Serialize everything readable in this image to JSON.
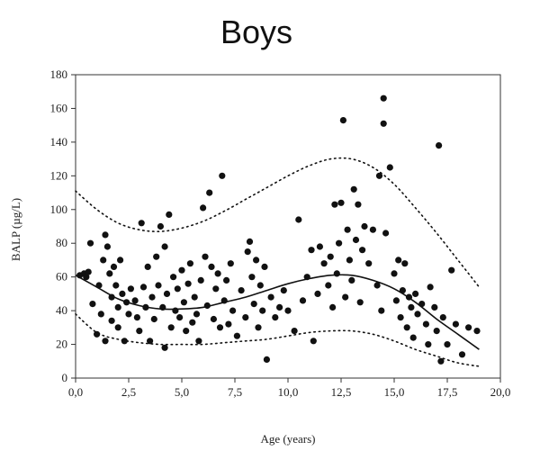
{
  "chart_data": {
    "type": "scatter",
    "title": "Boys",
    "xlabel": "Age (years)",
    "ylabel": "BALP (µg/L)",
    "xlim": [
      0,
      20
    ],
    "ylim": [
      0,
      180
    ],
    "xticks": [
      0,
      2.5,
      5,
      7.5,
      10,
      12.5,
      15,
      17.5,
      20
    ],
    "xtick_labels": [
      "0,0",
      "2,5",
      "5,0",
      "7,5",
      "10,0",
      "12,5",
      "15,0",
      "17,5",
      "20,0"
    ],
    "yticks": [
      0,
      20,
      40,
      60,
      80,
      100,
      120,
      140,
      160,
      180
    ],
    "ytick_labels": [
      "0",
      "20",
      "40",
      "60",
      "80",
      "100",
      "120",
      "140",
      "160",
      "180"
    ],
    "grid": false,
    "series": [
      {
        "type": "scatter",
        "points": [
          [
            0.2,
            61
          ],
          [
            0.4,
            62
          ],
          [
            0.5,
            60
          ],
          [
            0.6,
            63
          ],
          [
            0.7,
            80
          ],
          [
            0.8,
            44
          ],
          [
            1.0,
            26
          ],
          [
            1.1,
            55
          ],
          [
            1.2,
            38
          ],
          [
            1.3,
            70
          ],
          [
            1.4,
            85
          ],
          [
            1.4,
            22
          ],
          [
            1.5,
            78
          ],
          [
            1.6,
            62
          ],
          [
            1.7,
            48
          ],
          [
            1.7,
            34
          ],
          [
            1.8,
            66
          ],
          [
            1.9,
            55
          ],
          [
            2.0,
            42
          ],
          [
            2.0,
            30
          ],
          [
            2.1,
            70
          ],
          [
            2.2,
            50
          ],
          [
            2.3,
            22
          ],
          [
            2.4,
            45
          ],
          [
            2.5,
            38
          ],
          [
            2.6,
            53
          ],
          [
            2.8,
            46
          ],
          [
            2.9,
            36
          ],
          [
            3.0,
            28
          ],
          [
            3.1,
            92
          ],
          [
            3.2,
            54
          ],
          [
            3.3,
            42
          ],
          [
            3.4,
            66
          ],
          [
            3.5,
            22
          ],
          [
            3.6,
            48
          ],
          [
            3.7,
            35
          ],
          [
            3.8,
            72
          ],
          [
            3.9,
            55
          ],
          [
            4.0,
            90
          ],
          [
            4.1,
            42
          ],
          [
            4.2,
            78
          ],
          [
            4.2,
            18
          ],
          [
            4.3,
            50
          ],
          [
            4.4,
            97
          ],
          [
            4.5,
            30
          ],
          [
            4.6,
            60
          ],
          [
            4.7,
            40
          ],
          [
            4.8,
            53
          ],
          [
            4.9,
            36
          ],
          [
            5.0,
            64
          ],
          [
            5.1,
            45
          ],
          [
            5.2,
            28
          ],
          [
            5.3,
            56
          ],
          [
            5.4,
            68
          ],
          [
            5.5,
            33
          ],
          [
            5.6,
            48
          ],
          [
            5.7,
            38
          ],
          [
            5.8,
            22
          ],
          [
            5.9,
            58
          ],
          [
            6.0,
            101
          ],
          [
            6.1,
            72
          ],
          [
            6.2,
            43
          ],
          [
            6.3,
            110
          ],
          [
            6.4,
            66
          ],
          [
            6.5,
            35
          ],
          [
            6.6,
            53
          ],
          [
            6.7,
            62
          ],
          [
            6.8,
            30
          ],
          [
            6.9,
            120
          ],
          [
            7.0,
            46
          ],
          [
            7.1,
            58
          ],
          [
            7.2,
            32
          ],
          [
            7.3,
            68
          ],
          [
            7.4,
            40
          ],
          [
            7.6,
            25
          ],
          [
            7.8,
            52
          ],
          [
            8.0,
            36
          ],
          [
            8.1,
            75
          ],
          [
            8.2,
            81
          ],
          [
            8.3,
            60
          ],
          [
            8.4,
            44
          ],
          [
            8.5,
            70
          ],
          [
            8.6,
            30
          ],
          [
            8.7,
            55
          ],
          [
            8.8,
            40
          ],
          [
            8.9,
            66
          ],
          [
            9.0,
            11
          ],
          [
            9.2,
            48
          ],
          [
            9.4,
            36
          ],
          [
            9.6,
            42
          ],
          [
            9.8,
            52
          ],
          [
            10.0,
            40
          ],
          [
            10.3,
            28
          ],
          [
            10.5,
            94
          ],
          [
            10.7,
            46
          ],
          [
            10.9,
            60
          ],
          [
            11.1,
            76
          ],
          [
            11.2,
            22
          ],
          [
            11.4,
            50
          ],
          [
            11.5,
            78
          ],
          [
            11.7,
            68
          ],
          [
            11.9,
            55
          ],
          [
            12.0,
            72
          ],
          [
            12.1,
            42
          ],
          [
            12.2,
            103
          ],
          [
            12.3,
            62
          ],
          [
            12.4,
            80
          ],
          [
            12.5,
            104
          ],
          [
            12.6,
            153
          ],
          [
            12.7,
            48
          ],
          [
            12.8,
            88
          ],
          [
            12.9,
            70
          ],
          [
            13.0,
            58
          ],
          [
            13.1,
            112
          ],
          [
            13.2,
            82
          ],
          [
            13.3,
            103
          ],
          [
            13.4,
            45
          ],
          [
            13.5,
            76
          ],
          [
            13.6,
            90
          ],
          [
            13.8,
            68
          ],
          [
            14.0,
            88
          ],
          [
            14.2,
            55
          ],
          [
            14.3,
            120
          ],
          [
            14.4,
            40
          ],
          [
            14.5,
            166
          ],
          [
            14.5,
            151
          ],
          [
            14.6,
            86
          ],
          [
            14.8,
            125
          ],
          [
            15.0,
            62
          ],
          [
            15.1,
            46
          ],
          [
            15.2,
            70
          ],
          [
            15.3,
            36
          ],
          [
            15.4,
            52
          ],
          [
            15.5,
            68
          ],
          [
            15.6,
            30
          ],
          [
            15.7,
            48
          ],
          [
            15.8,
            42
          ],
          [
            15.9,
            24
          ],
          [
            16.0,
            50
          ],
          [
            16.1,
            38
          ],
          [
            16.3,
            44
          ],
          [
            16.5,
            32
          ],
          [
            16.6,
            20
          ],
          [
            16.7,
            54
          ],
          [
            16.9,
            42
          ],
          [
            17.0,
            28
          ],
          [
            17.1,
            138
          ],
          [
            17.2,
            10
          ],
          [
            17.3,
            36
          ],
          [
            17.5,
            20
          ],
          [
            17.7,
            64
          ],
          [
            17.9,
            32
          ],
          [
            18.2,
            14
          ],
          [
            18.5,
            30
          ],
          [
            18.9,
            28
          ]
        ]
      },
      {
        "type": "line",
        "style": "solid",
        "points": [
          [
            0,
            61
          ],
          [
            1,
            54
          ],
          [
            2,
            47
          ],
          [
            3,
            43
          ],
          [
            4,
            41
          ],
          [
            5,
            41
          ],
          [
            6,
            42
          ],
          [
            7,
            45
          ],
          [
            8,
            48
          ],
          [
            9,
            52
          ],
          [
            10,
            56
          ],
          [
            11,
            59
          ],
          [
            12,
            61
          ],
          [
            13,
            61
          ],
          [
            14,
            58
          ],
          [
            15,
            53
          ],
          [
            16,
            45
          ],
          [
            17,
            35
          ],
          [
            18,
            26
          ],
          [
            19,
            17
          ]
        ]
      },
      {
        "type": "line",
        "style": "dotted",
        "points": [
          [
            0,
            111
          ],
          [
            1,
            100
          ],
          [
            2,
            92
          ],
          [
            3,
            88
          ],
          [
            4,
            87
          ],
          [
            5,
            89
          ],
          [
            6,
            93
          ],
          [
            7,
            99
          ],
          [
            8,
            106
          ],
          [
            9,
            113
          ],
          [
            10,
            120
          ],
          [
            11,
            126
          ],
          [
            12,
            130
          ],
          [
            13,
            130
          ],
          [
            14,
            125
          ],
          [
            15,
            115
          ],
          [
            16,
            101
          ],
          [
            17,
            86
          ],
          [
            18,
            70
          ],
          [
            19,
            54
          ]
        ]
      },
      {
        "type": "line",
        "style": "dotted",
        "points": [
          [
            0,
            38
          ],
          [
            1,
            27
          ],
          [
            2,
            23
          ],
          [
            3,
            21
          ],
          [
            4,
            20
          ],
          [
            5,
            20
          ],
          [
            6,
            20
          ],
          [
            7,
            21
          ],
          [
            8,
            22
          ],
          [
            9,
            23
          ],
          [
            10,
            25
          ],
          [
            11,
            27
          ],
          [
            12,
            28
          ],
          [
            13,
            28
          ],
          [
            14,
            26
          ],
          [
            15,
            22
          ],
          [
            16,
            17
          ],
          [
            17,
            13
          ],
          [
            18,
            9
          ],
          [
            19,
            7
          ]
        ]
      }
    ]
  }
}
